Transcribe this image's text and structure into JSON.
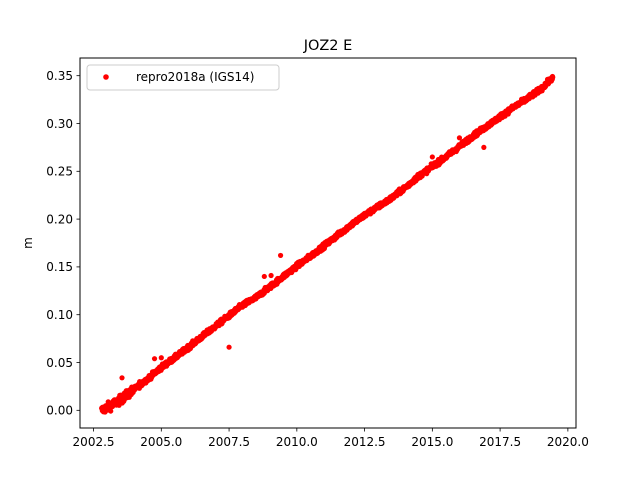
{
  "chart_data": {
    "type": "scatter",
    "title": "JOZ2 E",
    "xlabel": "",
    "ylabel": "m",
    "xlim": [
      2002.0,
      2020.3
    ],
    "ylim": [
      -0.0185,
      0.3685
    ],
    "xticks": [
      2002.5,
      2005.0,
      2007.5,
      2010.0,
      2012.5,
      2015.0,
      2017.5,
      2020.0
    ],
    "xtick_labels": [
      "2002.5",
      "2005.0",
      "2007.5",
      "2010.0",
      "2012.5",
      "2015.0",
      "2017.5",
      "2020.0"
    ],
    "yticks": [
      0.0,
      0.05,
      0.1,
      0.15,
      0.2,
      0.25,
      0.3,
      0.35
    ],
    "ytick_labels": [
      "0.00",
      "0.05",
      "0.10",
      "0.15",
      "0.20",
      "0.25",
      "0.30",
      "0.35"
    ],
    "grid": false,
    "legend_position": "top-left",
    "series": [
      {
        "name": "repro2018a (IGS14)",
        "color": "#ff0000",
        "marker": "circle",
        "trend": {
          "points": [
            [
              2002.8,
              0.0
            ],
            [
              2003.0,
              0.003
            ],
            [
              2003.5,
              0.011
            ],
            [
              2004.0,
              0.022
            ],
            [
              2004.5,
              0.033
            ],
            [
              2005.0,
              0.045
            ],
            [
              2005.5,
              0.055
            ],
            [
              2006.0,
              0.066
            ],
            [
              2006.5,
              0.077
            ],
            [
              2007.0,
              0.088
            ],
            [
              2007.5,
              0.099
            ],
            [
              2008.0,
              0.11
            ],
            [
              2008.5,
              0.118
            ],
            [
              2009.0,
              0.129
            ],
            [
              2009.5,
              0.14
            ],
            [
              2010.0,
              0.151
            ],
            [
              2010.5,
              0.161
            ],
            [
              2011.0,
              0.172
            ],
            [
              2011.5,
              0.183
            ],
            [
              2012.0,
              0.194
            ],
            [
              2012.5,
              0.204
            ],
            [
              2013.0,
              0.213
            ],
            [
              2013.5,
              0.222
            ],
            [
              2014.0,
              0.233
            ],
            [
              2014.5,
              0.245
            ],
            [
              2015.0,
              0.255
            ],
            [
              2015.5,
              0.265
            ],
            [
              2016.0,
              0.276
            ],
            [
              2016.5,
              0.287
            ],
            [
              2017.0,
              0.297
            ],
            [
              2017.5,
              0.307
            ],
            [
              2018.0,
              0.317
            ],
            [
              2018.5,
              0.326
            ],
            [
              2019.0,
              0.336
            ],
            [
              2019.45,
              0.348
            ]
          ],
          "noise": 0.0025
        },
        "outliers": [
          [
            2003.55,
            0.034
          ],
          [
            2004.2,
            0.03
          ],
          [
            2004.75,
            0.054
          ],
          [
            2005.0,
            0.055
          ],
          [
            2007.5,
            0.066
          ],
          [
            2008.8,
            0.14
          ],
          [
            2009.05,
            0.141
          ],
          [
            2009.4,
            0.162
          ],
          [
            2012.5,
            0.206
          ],
          [
            2015.0,
            0.265
          ],
          [
            2016.0,
            0.285
          ],
          [
            2016.9,
            0.275
          ]
        ]
      }
    ]
  }
}
